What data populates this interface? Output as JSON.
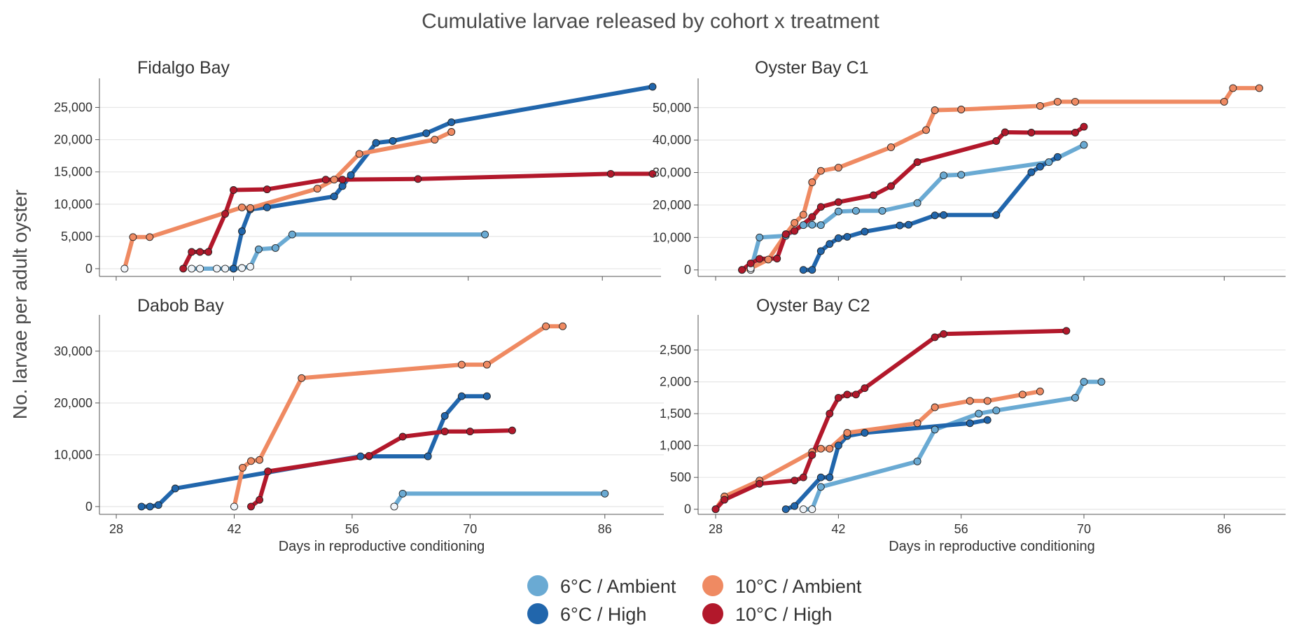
{
  "chart_data": {
    "type": "line",
    "title": "Cumulative larvae released by cohort x treatment",
    "ylabel": "No. larvae per adult oyster",
    "xlabel": "Days in reproductive conditioning",
    "x_ticks": [
      28,
      42,
      56,
      70,
      86
    ],
    "legend": {
      "placement": "bottom",
      "entries": [
        {
          "name": "6°C / Ambient",
          "color": "#6aaad3"
        },
        {
          "name": "10°C / Ambient",
          "color": "#ef8a62"
        },
        {
          "name": "6°C / High",
          "color": "#2166ac"
        },
        {
          "name": "10°C / High",
          "color": "#b2182b"
        }
      ]
    },
    "panels": [
      {
        "title": "Fidalgo Bay",
        "xlim": [
          26,
          93
        ],
        "ylim": [
          -1200,
          29500
        ],
        "y_ticks": [
          0,
          5000,
          10000,
          15000,
          20000,
          25000
        ],
        "y_tick_labels": [
          "0",
          "5,000",
          "10,000",
          "15,000",
          "20,000",
          "25,000"
        ],
        "show_x_labels": false,
        "show_x_title": false,
        "series": [
          {
            "name": "6°C / Ambient",
            "x": [
              37,
              38,
              40,
              41,
              42,
              43,
              44,
              45,
              47,
              49,
              72
            ],
            "y": [
              0,
              0,
              0,
              0,
              0,
              100,
              300,
              3000,
              3200,
              5300,
              5300
            ]
          },
          {
            "name": "6°C / High",
            "x": [
              42,
              43,
              44,
              46,
              54,
              55,
              56,
              59,
              61,
              65,
              68,
              92
            ],
            "y": [
              0,
              5800,
              9200,
              9500,
              11200,
              12800,
              14500,
              19500,
              19800,
              21000,
              22700,
              28200
            ]
          },
          {
            "name": "10°C / Ambient",
            "x": [
              29,
              30,
              32,
              43,
              44,
              52,
              54,
              57,
              66,
              68
            ],
            "y": [
              0,
              4900,
              4900,
              9500,
              9400,
              12400,
              13800,
              17800,
              20000,
              21200
            ]
          },
          {
            "name": "10°C / High",
            "x": [
              36,
              37,
              38,
              39,
              41,
              42,
              46,
              53,
              55,
              64,
              87,
              92
            ],
            "y": [
              0,
              2600,
              2600,
              2600,
              8500,
              12200,
              12300,
              13800,
              13800,
              13900,
              14700,
              14700
            ]
          }
        ]
      },
      {
        "title": "Oyster Bay C1",
        "xlim": [
          26,
          93
        ],
        "ylim": [
          -2000,
          59000
        ],
        "y_ticks": [
          0,
          10000,
          20000,
          30000,
          40000,
          50000
        ],
        "y_tick_labels": [
          "0",
          "10,000",
          "20,000",
          "30,000",
          "40,000",
          "50,000"
        ],
        "show_x_labels": false,
        "show_x_title": false,
        "series": [
          {
            "name": "6°C / Ambient",
            "x": [
              32,
              33,
              36,
              38,
              39,
              40,
              42,
              44,
              47,
              51,
              54,
              56,
              66,
              70
            ],
            "y": [
              0,
              10000,
              10500,
              13800,
              13900,
              13800,
              18000,
              18200,
              18200,
              20600,
              29100,
              29300,
              33200,
              38500
            ]
          },
          {
            "name": "6°C / High",
            "x": [
              38,
              39,
              40,
              41,
              42,
              43,
              45,
              49,
              50,
              53,
              54,
              60,
              64,
              65,
              67
            ],
            "y": [
              0,
              0,
              5800,
              8000,
              9800,
              10200,
              11800,
              13700,
              13900,
              16800,
              16900,
              16900,
              30100,
              31800,
              34800
            ]
          },
          {
            "name": "10°C / Ambient",
            "x": [
              31,
              32,
              34,
              36,
              37,
              38,
              39,
              40,
              42,
              48,
              52,
              53,
              56,
              65,
              67,
              69,
              86,
              87,
              90
            ],
            "y": [
              0,
              500,
              3200,
              11000,
              14500,
              17000,
              27000,
              30500,
              31500,
              37800,
              43100,
              49200,
              49400,
              50500,
              51800,
              51800,
              51800,
              56000,
              56000
            ]
          },
          {
            "name": "10°C / High",
            "x": [
              31,
              32,
              33,
              35,
              36,
              37,
              39,
              40,
              42,
              46,
              48,
              51,
              60,
              61,
              64,
              69,
              70
            ],
            "y": [
              0,
              2000,
              3400,
              3500,
              11000,
              12000,
              16300,
              19400,
              20900,
              23000,
              25800,
              33200,
              39700,
              42400,
              42300,
              42300,
              44100
            ]
          }
        ]
      },
      {
        "title": "Dabob Bay",
        "xlim": [
          26,
          93
        ],
        "ylim": [
          -1500,
          37000
        ],
        "y_ticks": [
          0,
          10000,
          20000,
          30000
        ],
        "y_tick_labels": [
          "0",
          "10,000",
          "20,000",
          "30,000"
        ],
        "show_x_labels": true,
        "show_x_title": true,
        "series": [
          {
            "name": "6°C / Ambient",
            "x": [
              61,
              62,
              86
            ],
            "y": [
              0,
              2500,
              2500
            ]
          },
          {
            "name": "6°C / High",
            "x": [
              31,
              32,
              33,
              35,
              57,
              58,
              65,
              67,
              69,
              72
            ],
            "y": [
              0,
              0,
              300,
              3500,
              9700,
              9700,
              9700,
              17500,
              21300,
              21300
            ]
          },
          {
            "name": "10°C / Ambient",
            "x": [
              42,
              43,
              44,
              45,
              50,
              69,
              72,
              79,
              81
            ],
            "y": [
              0,
              7500,
              8800,
              9000,
              24800,
              27400,
              27400,
              34800,
              34800
            ]
          },
          {
            "name": "10°C / High",
            "x": [
              44,
              45,
              46,
              58,
              62,
              67,
              70,
              75
            ],
            "y": [
              0,
              1300,
              6800,
              9800,
              13500,
              14500,
              14500,
              14700
            ]
          }
        ]
      },
      {
        "title": "Oyster Bay  C2",
        "xlim": [
          26,
          93
        ],
        "ylim": [
          -80,
          3050
        ],
        "y_ticks": [
          0,
          500,
          1000,
          1500,
          2000,
          2500
        ],
        "y_tick_labels": [
          "0",
          "500",
          "1,000",
          "1,500",
          "2,000",
          "2,500"
        ],
        "show_x_labels": true,
        "show_x_title": true,
        "series": [
          {
            "name": "6°C / Ambient",
            "x": [
              38,
              39,
              40,
              51,
              53,
              58,
              60,
              69,
              70,
              72
            ],
            "y": [
              0,
              0,
              350,
              750,
              1250,
              1500,
              1550,
              1750,
              2000,
              2000
            ]
          },
          {
            "name": "6°C / High",
            "x": [
              36,
              37,
              40,
              41,
              42,
              43,
              45,
              57,
              59
            ],
            "y": [
              0,
              50,
              500,
              500,
              1000,
              1150,
              1200,
              1350,
              1400
            ]
          },
          {
            "name": "10°C / Ambient",
            "x": [
              28,
              29,
              33,
              39,
              40,
              41,
              43,
              51,
              53,
              57,
              59,
              63,
              65
            ],
            "y": [
              0,
              200,
              450,
              900,
              950,
              950,
              1200,
              1350,
              1600,
              1700,
              1700,
              1800,
              1850
            ]
          },
          {
            "name": "10°C / High",
            "x": [
              28,
              29,
              33,
              37,
              38,
              39,
              41,
              42,
              43,
              44,
              45,
              53,
              54,
              68
            ],
            "y": [
              0,
              150,
              400,
              450,
              500,
              850,
              1500,
              1750,
              1800,
              1800,
              1900,
              2700,
              2750,
              2800
            ]
          }
        ]
      }
    ]
  }
}
